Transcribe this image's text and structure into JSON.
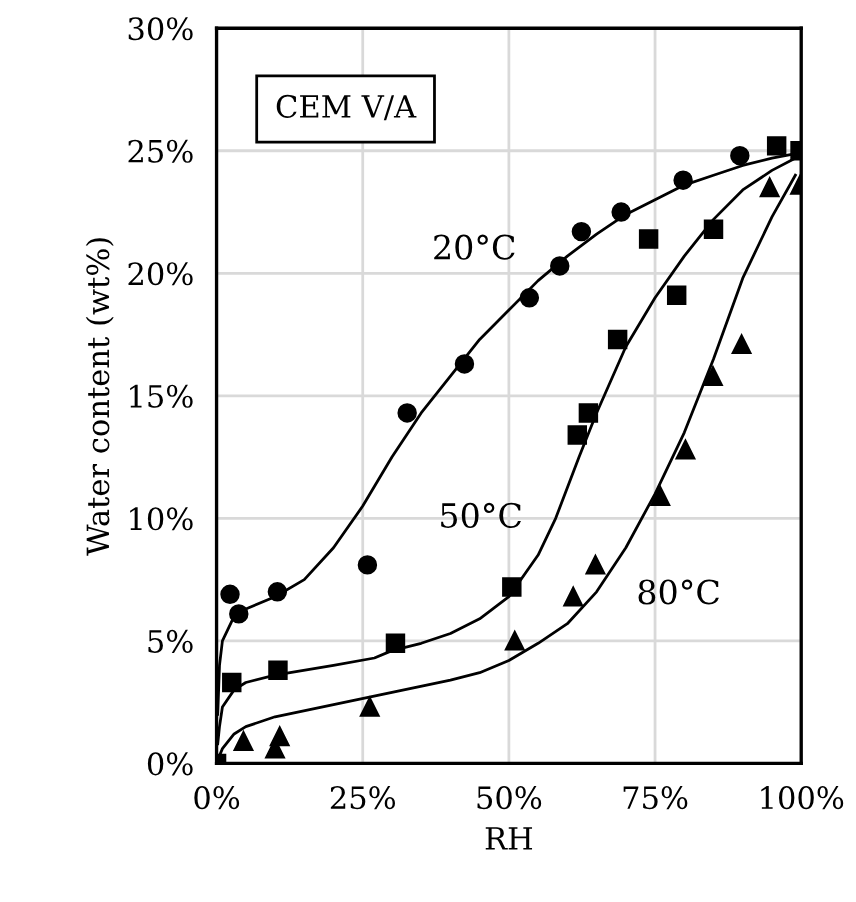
{
  "chart_data": {
    "type": "scatter",
    "xlabel": "RH",
    "ylabel": "Water content (wt%)",
    "xlim": [
      0,
      100
    ],
    "ylim": [
      0,
      30
    ],
    "xticks": [
      {
        "value": 0,
        "label": "0%"
      },
      {
        "value": 25,
        "label": "25%"
      },
      {
        "value": 50,
        "label": "50%"
      },
      {
        "value": 75,
        "label": "75%"
      },
      {
        "value": 100,
        "label": "100%"
      }
    ],
    "yticks": [
      {
        "value": 0,
        "label": "0%"
      },
      {
        "value": 5,
        "label": "5%"
      },
      {
        "value": 10,
        "label": "10%"
      },
      {
        "value": 15,
        "label": "15%"
      },
      {
        "value": 20,
        "label": "20%"
      },
      {
        "value": 25,
        "label": "25%"
      },
      {
        "value": 30,
        "label": "30%"
      }
    ],
    "grid": true,
    "annotations": [
      "CEM V/A",
      {
        "text": "20°C",
        "x": 55,
        "y": 19.7
      },
      {
        "text": "50°C",
        "x": 58,
        "y": 10
      },
      {
        "text": "80°C",
        "x": 70,
        "y": 8.8
      }
    ],
    "series": [
      {
        "marker": "circle",
        "color": "#000000",
        "x": [
          2.3,
          3.8,
          10.4,
          25.8,
          32.6,
          42.4,
          53.5,
          58.7,
          62.4,
          69.2,
          79.8,
          89.5
        ],
        "values": [
          6.9,
          6.1,
          7,
          8.1,
          14.3,
          16.3,
          19,
          20.3,
          21.7,
          22.5,
          23.8,
          24.8
        ]
      },
      {
        "marker": "square",
        "color": "#000000",
        "x": [
          0,
          2.6,
          10.5,
          30.6,
          50.5,
          61.7,
          63.6,
          68.6,
          78.7,
          73.9,
          85,
          95.8,
          99.8
        ],
        "values": [
          0,
          3.3,
          3.8,
          4.9,
          7.2,
          13.4,
          14.3,
          17.3,
          19.1,
          21.4,
          21.8,
          25.2,
          25
        ]
      },
      {
        "marker": "triangle",
        "color": "#000000",
        "x": [
          4.6,
          10,
          10.8,
          26.2,
          51,
          61,
          64.8,
          75.9,
          80.2,
          84.9,
          89.8,
          94.6,
          99.8
        ],
        "values": [
          0.9,
          0.6,
          1.1,
          2.3,
          5,
          6.8,
          8.1,
          10.9,
          12.8,
          15.8,
          17.1,
          23.5,
          23.6
        ]
      },
      {
        "type": "line",
        "marker": "none",
        "color": "#000000",
        "x": [
          0.2,
          0.5,
          1,
          3,
          5,
          10,
          15,
          20,
          25,
          30,
          35,
          40,
          45,
          50,
          55,
          60,
          65,
          70,
          75,
          80,
          85,
          90,
          95,
          99.5
        ],
        "values": [
          2,
          4,
          5,
          6,
          6.3,
          6.8,
          7.5,
          8.8,
          10.5,
          12.5,
          14.3,
          15.8,
          17.3,
          18.5,
          19.7,
          20.7,
          21.6,
          22.4,
          23,
          23.6,
          24,
          24.4,
          24.7,
          24.9
        ]
      },
      {
        "type": "line",
        "marker": "none",
        "color": "#000000",
        "x": [
          0.2,
          0.5,
          1,
          3,
          5,
          10,
          20,
          27,
          30,
          35,
          40,
          45,
          50,
          55,
          58,
          62,
          65,
          70,
          75,
          80,
          85,
          90,
          95,
          99
        ],
        "values": [
          0.8,
          1.5,
          2.3,
          3,
          3.3,
          3.6,
          4,
          4.3,
          4.6,
          4.9,
          5.3,
          5.9,
          6.8,
          8.5,
          10,
          12.5,
          14.3,
          17,
          19,
          20.7,
          22.2,
          23.4,
          24.2,
          24.7
        ]
      },
      {
        "type": "line",
        "marker": "none",
        "color": "#000000",
        "x": [
          0.3,
          1,
          3,
          5,
          10,
          20,
          30,
          40,
          45,
          50,
          55,
          60,
          65,
          70,
          75,
          80,
          85,
          90,
          95,
          99
        ],
        "values": [
          0.2,
          0.6,
          1.2,
          1.5,
          1.9,
          2.4,
          2.9,
          3.4,
          3.7,
          4.2,
          4.9,
          5.7,
          7,
          8.8,
          11,
          13.5,
          16.5,
          19.8,
          22.3,
          24
        ]
      }
    ]
  }
}
